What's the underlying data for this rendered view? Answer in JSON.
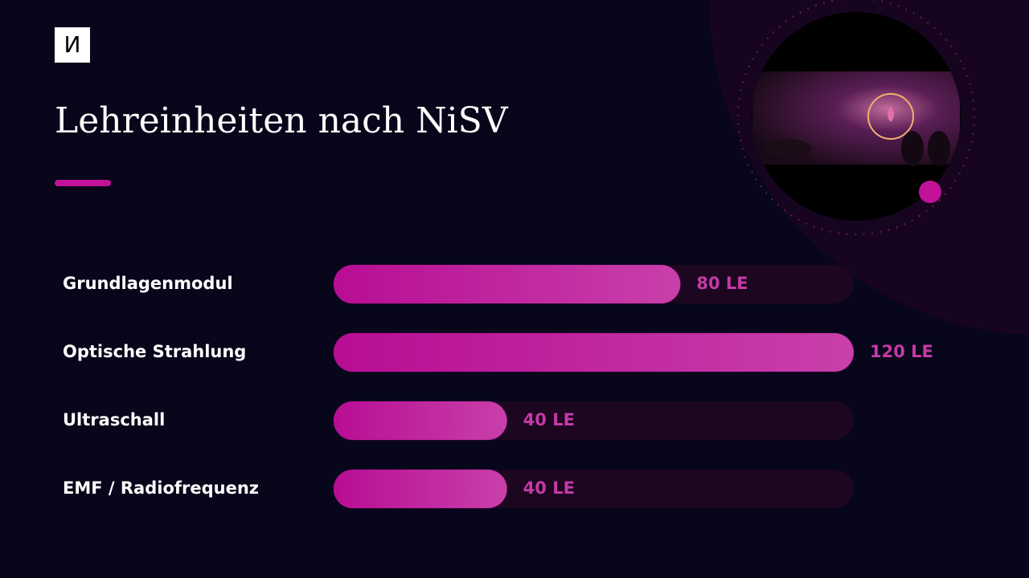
{
  "logo": "И",
  "chart_data": {
    "type": "bar",
    "orientation": "horizontal",
    "title": "Lehreinheiten nach NiSV",
    "categories": [
      "Grundlagenmodul",
      "Optische Strahlung",
      "Ultraschall",
      "EMF / Radiofrequenz"
    ],
    "values": [
      80,
      120,
      40,
      40
    ],
    "value_labels": [
      "80 LE",
      "120 LE",
      "40 LE",
      "40 LE"
    ],
    "color": "#c0179c"
  }
}
